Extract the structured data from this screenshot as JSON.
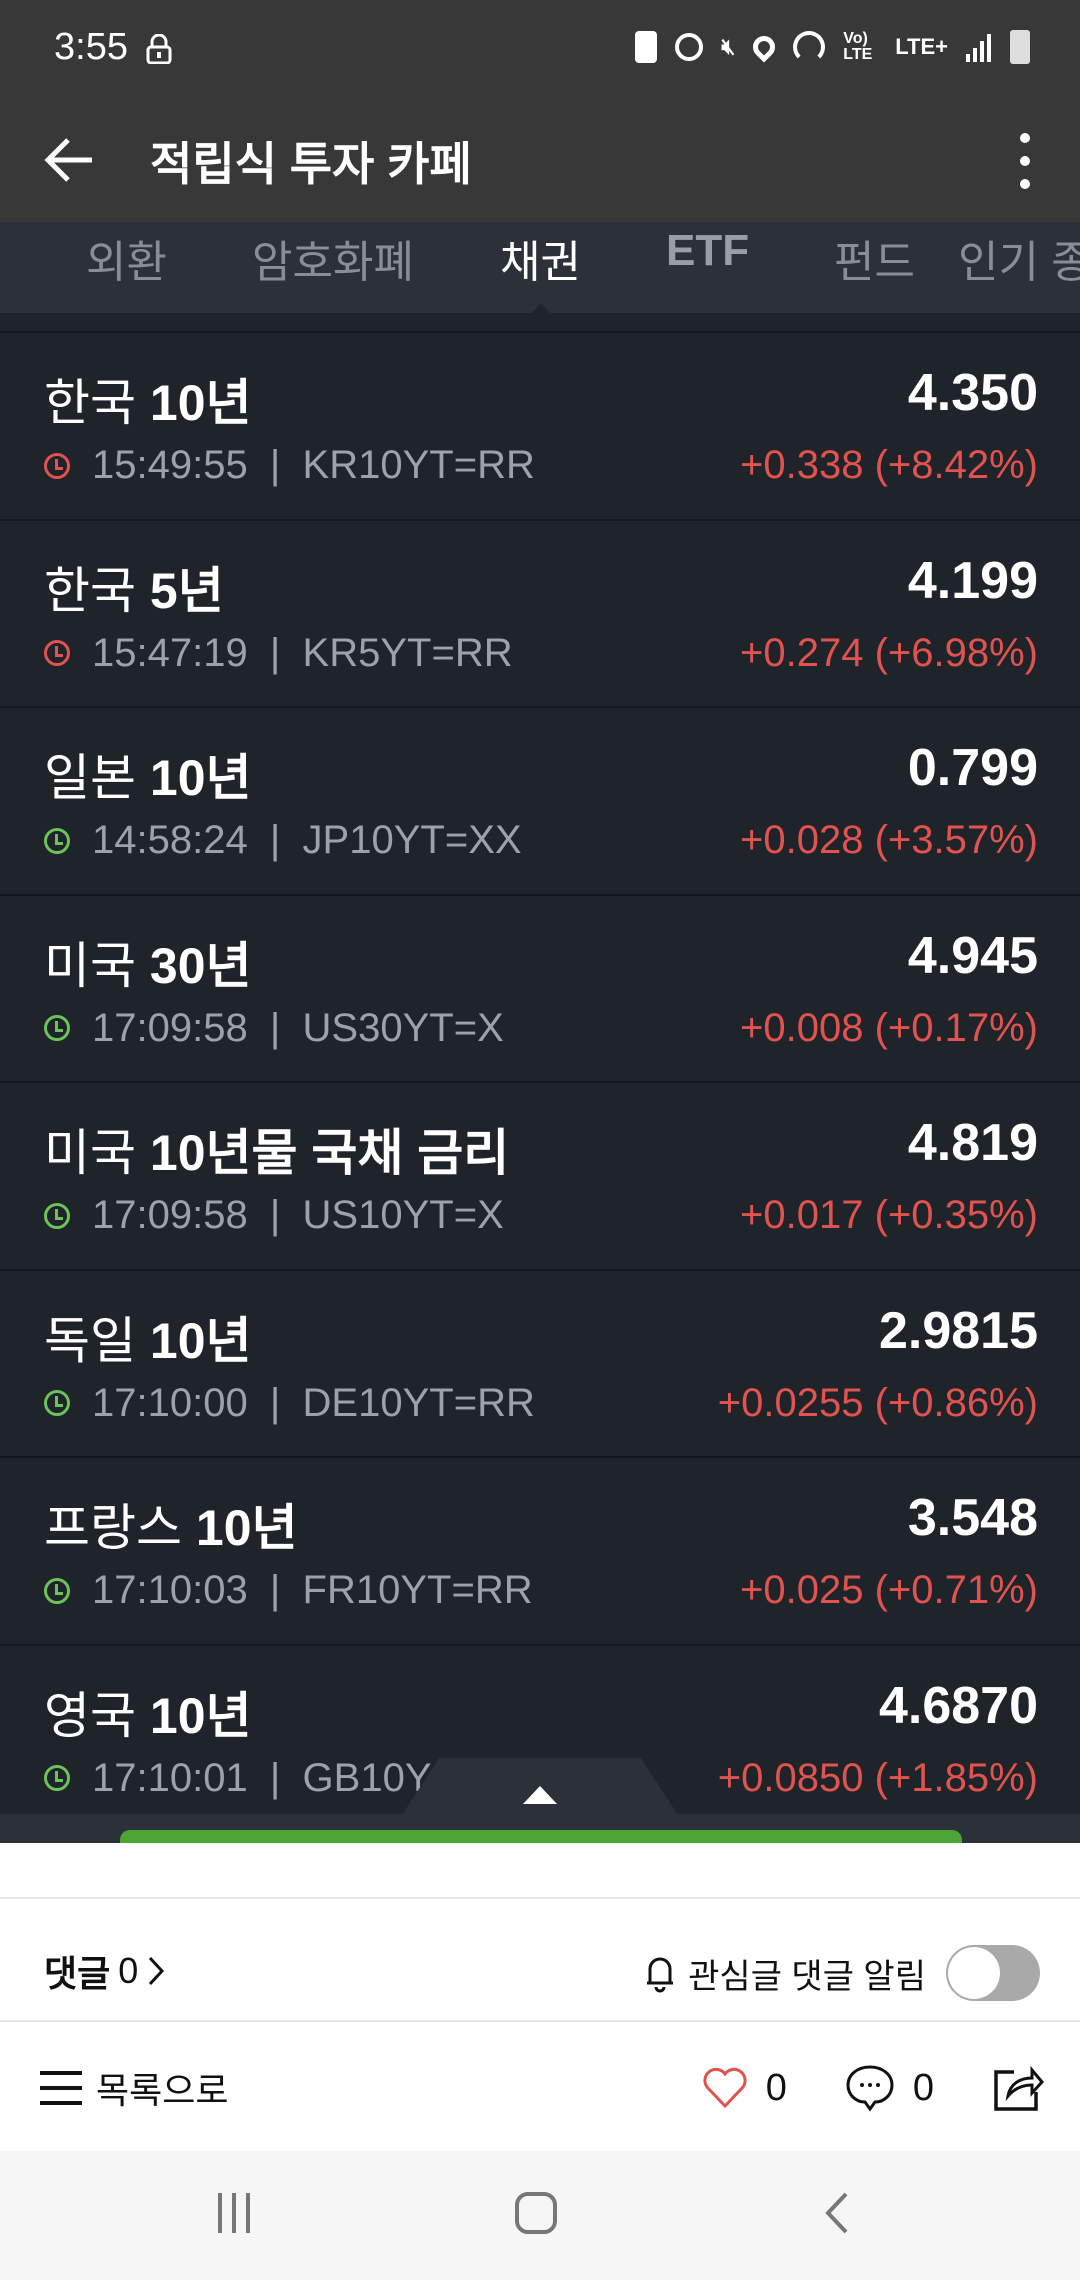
{
  "status_bar": {
    "time": "3:55",
    "icons": [
      "lock-icon",
      "battery-saver-icon",
      "alarm-icon",
      "mute-icon",
      "location-icon",
      "hotspot-icon",
      "volte-icon",
      "lte-plus-icon",
      "signal-icon",
      "battery-charging-icon"
    ],
    "volte": "Vo) LTE",
    "lte": "LTE+"
  },
  "app_bar": {
    "title": "적립식 투자 카페"
  },
  "tabs": [
    {
      "label": "외환"
    },
    {
      "label": "암호화폐"
    },
    {
      "label": "채권",
      "active": true
    },
    {
      "label": "ETF"
    },
    {
      "label": "펀드"
    },
    {
      "label": "인기 종"
    }
  ],
  "bonds": [
    {
      "country": "한국",
      "term": "10년",
      "value": "4.350",
      "time": "15:49:55",
      "code": "KR10YT=RR",
      "change": "+0.338 (+8.42%)",
      "status": "closed"
    },
    {
      "country": "한국",
      "term": "5년",
      "value": "4.199",
      "time": "15:47:19",
      "code": "KR5YT=RR",
      "change": "+0.274 (+6.98%)",
      "status": "closed"
    },
    {
      "country": "일본",
      "term": "10년",
      "value": "0.799",
      "time": "14:58:24",
      "code": "JP10YT=XX",
      "change": "+0.028 (+3.57%)",
      "status": "open"
    },
    {
      "country": "미국",
      "term": "30년",
      "value": "4.945",
      "time": "17:09:58",
      "code": "US30YT=X",
      "change": "+0.008 (+0.17%)",
      "status": "open"
    },
    {
      "country": "미국",
      "term": "10년물 국채 금리",
      "value": "4.819",
      "time": "17:09:58",
      "code": "US10YT=X",
      "change": "+0.017 (+0.35%)",
      "status": "open"
    },
    {
      "country": "독일",
      "term": "10년",
      "value": "2.9815",
      "time": "17:10:00",
      "code": "DE10YT=RR",
      "change": "+0.0255 (+0.86%)",
      "status": "open"
    },
    {
      "country": "프랑스",
      "term": "10년",
      "value": "3.548",
      "time": "17:10:03",
      "code": "FR10YT=RR",
      "change": "+0.025 (+0.71%)",
      "status": "open"
    },
    {
      "country": "영국",
      "term": "10년",
      "value": "4.6870",
      "time": "17:10:01",
      "code": "GB10Y",
      "change": "+0.0850 (+1.85%)",
      "status": "open"
    }
  ],
  "colors": {
    "up": "#e0534f",
    "clock_closed": "#e0534f",
    "clock_open": "#6cc25a",
    "accent_bar": "#4ca534"
  },
  "comments": {
    "label": "댓글",
    "count": "0"
  },
  "notify": {
    "label": "관심글 댓글 알림",
    "enabled": false
  },
  "actions": {
    "list_label": "목록으로",
    "likes": "0",
    "comment_count": "0"
  }
}
